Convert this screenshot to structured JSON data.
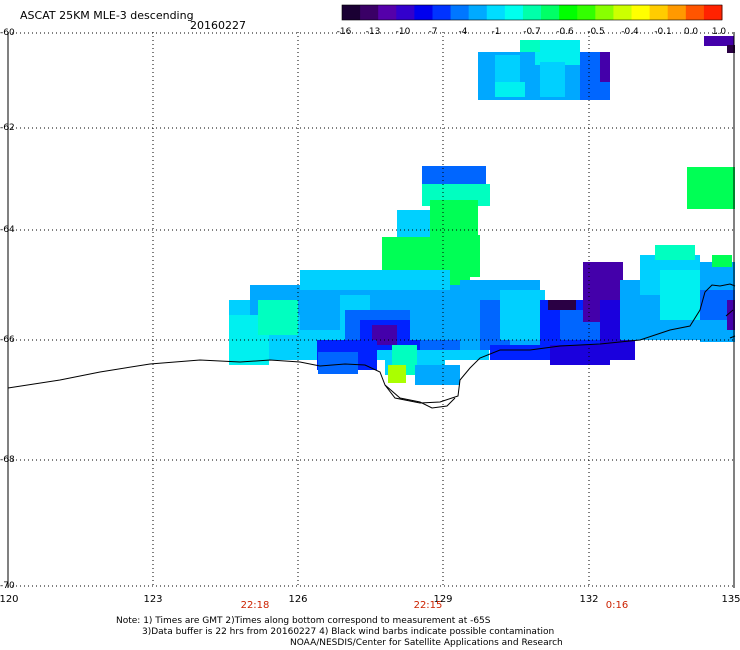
{
  "header": {
    "title": "ASCAT 25KM MLE-3 descending",
    "date": "20160227"
  },
  "colorbar": {
    "labels": [
      "-16",
      "-13",
      "-10",
      "-7",
      "-4",
      "-1",
      "-0.7",
      "-0.6",
      "-0.5",
      "-0.4",
      "-0.1",
      "0.0",
      "1.0"
    ],
    "colors": [
      "#1a0033",
      "#3a0066",
      "#5500aa",
      "#3300cc",
      "#0000ee",
      "#0033ff",
      "#0077ff",
      "#00aaff",
      "#00ddff",
      "#00ffee",
      "#00ffaa",
      "#00ff66",
      "#00ff00",
      "#33ff00",
      "#88ff00",
      "#ccff00",
      "#ffff00",
      "#ffcc00",
      "#ff9900",
      "#ff5500",
      "#ff2200"
    ]
  },
  "axes": {
    "lat_labels": [
      "-60",
      "-62",
      "-64",
      "-66",
      "-68",
      "-70"
    ],
    "lon_labels": [
      "120",
      "123",
      "126",
      "129",
      "132",
      "135"
    ],
    "time_labels": [
      "22:18",
      "22:15",
      "0:16"
    ]
  },
  "notes": [
    "Note: 1) Times are GMT 2)Times along bottom correspond to measurement at -65S",
    "3)Data buffer is 22 hrs from 20160227 4) Black wind barbs indicate possible contamination",
    "NOAA/NESDIS/Center for Satellite Applications and Research"
  ]
}
